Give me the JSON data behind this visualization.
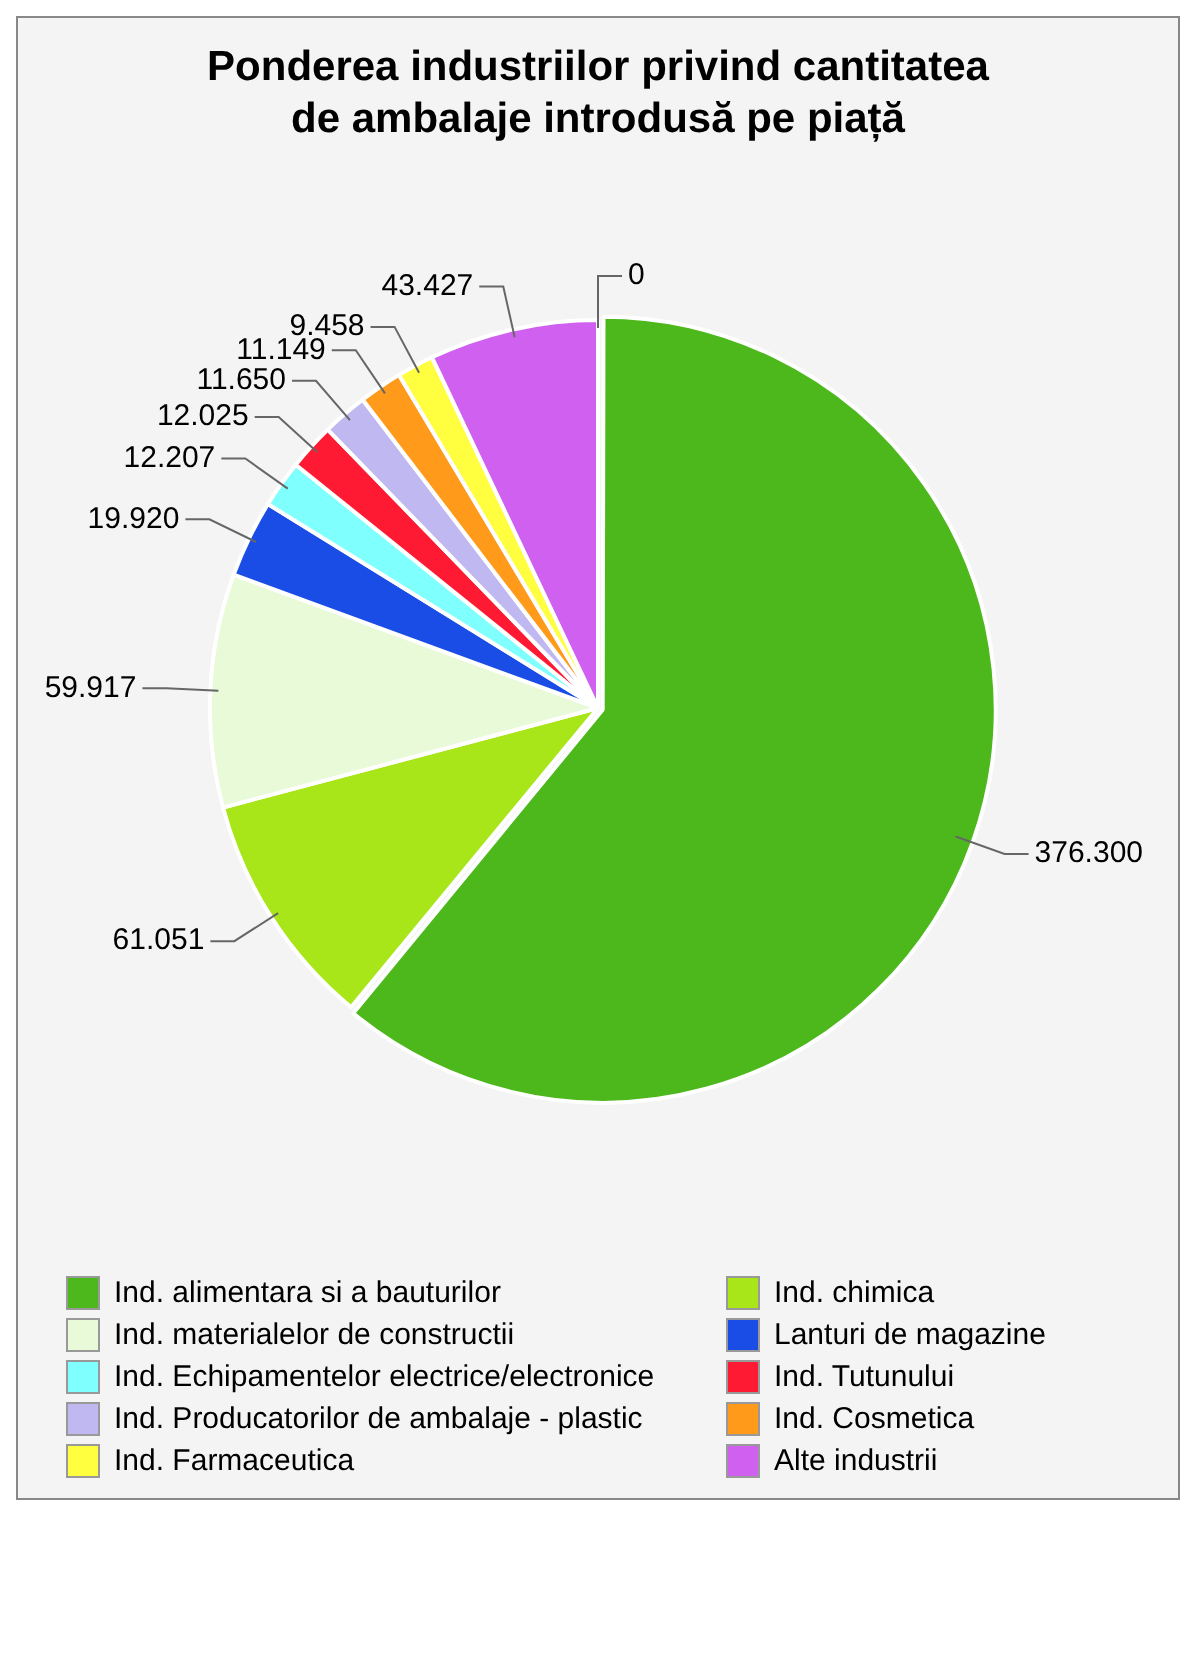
{
  "chart_data": {
    "type": "pie",
    "title": "Ponderea industriilor privind cantitatea de ambalaje introdusă pe piață",
    "categories": [
      "Ind. alimentara si a bauturilor",
      "Ind. chimica",
      "Ind. materialelor de constructii",
      "Lanturi de magazine",
      "Ind. Echipamentelor electrice/electronice",
      "Ind. Tutunului",
      "Ind. Producatorilor de ambalaje - plastic",
      "Ind. Cosmetica",
      "Ind. Farmaceutica",
      "Alte industrii",
      null
    ],
    "values": [
      376.3,
      61.051,
      59.917,
      19.92,
      12.207,
      12.025,
      11.65,
      11.149,
      9.458,
      43.427,
      0
    ],
    "value_labels": [
      "376.300",
      "61.051",
      "59.917",
      "19.920",
      "12.207",
      "12.025",
      "11.650",
      "11.149",
      "9.458",
      "43.427",
      "0"
    ],
    "colors": [
      "#4cb81c",
      "#a8e61a",
      "#e8fad8",
      "#1a4de6",
      "#80ffff",
      "#ff1a33",
      "#c0b8f0",
      "#ff9a1a",
      "#ffff40",
      "#d060f0",
      "#999999"
    ],
    "legend": "bottom"
  }
}
